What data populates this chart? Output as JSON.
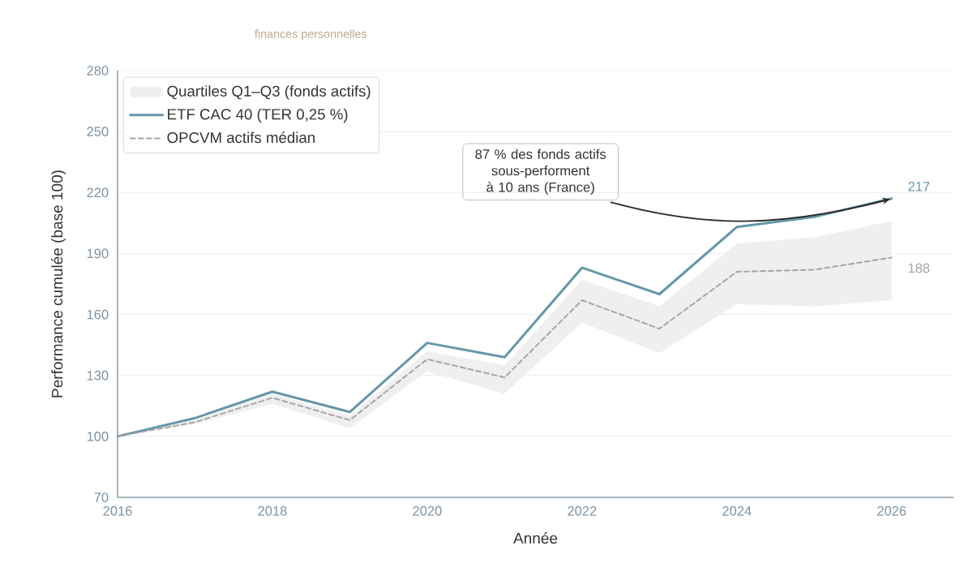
{
  "chart_data": {
    "type": "line",
    "subtitle": "finances personnelles",
    "xlabel": "Année",
    "ylabel": "Performance cumulée (base 100)",
    "x": [
      2016,
      2017,
      2018,
      2019,
      2020,
      2021,
      2022,
      2023,
      2024,
      2025,
      2026
    ],
    "series": [
      {
        "name": "Quartiles Q1–Q3 (fonds actifs)",
        "type": "area",
        "color": "#efefef",
        "values": [
          null,
          null,
          null,
          null,
          null,
          null,
          null,
          null,
          null,
          null,
          null
        ],
        "lower": [
          100,
          106,
          116,
          104,
          132,
          121,
          156,
          141,
          165,
          164,
          167
        ],
        "upper": [
          100,
          108,
          121,
          110,
          142,
          135,
          177,
          164,
          195,
          198,
          206
        ]
      },
      {
        "name": "ETF CAC 40 (TER 0,25 %)",
        "color": "#6497a8",
        "line_style": "solid",
        "values": [
          100,
          109,
          122,
          112,
          146,
          139,
          183,
          170,
          203,
          208,
          217
        ],
        "value_labels": [
          null,
          null,
          null,
          null,
          null,
          null,
          null,
          null,
          null,
          null,
          "217"
        ]
      },
      {
        "name": "OPCVM actifs médian",
        "color": "#a6a6a6",
        "line_style": "dashed",
        "values": [
          100,
          107,
          119,
          108,
          138,
          129,
          167,
          153,
          181,
          182,
          188
        ],
        "value_labels": [
          null,
          null,
          null,
          null,
          null,
          null,
          null,
          null,
          null,
          null,
          "188"
        ]
      }
    ],
    "xlim": [
      2016,
      2026.8
    ],
    "xticks": [
      2016,
      2018,
      2020,
      2022,
      2024,
      2026
    ],
    "ylim": [
      70,
      280
    ],
    "yticks": [
      70,
      100,
      130,
      160,
      190,
      220,
      250,
      280
    ],
    "grid": "y",
    "legend": "top left",
    "annotations": [
      {
        "text": "87 % des fonds actifs sous-performent à 10 ans (France)",
        "x": 2026,
        "y": 217
      }
    ]
  }
}
